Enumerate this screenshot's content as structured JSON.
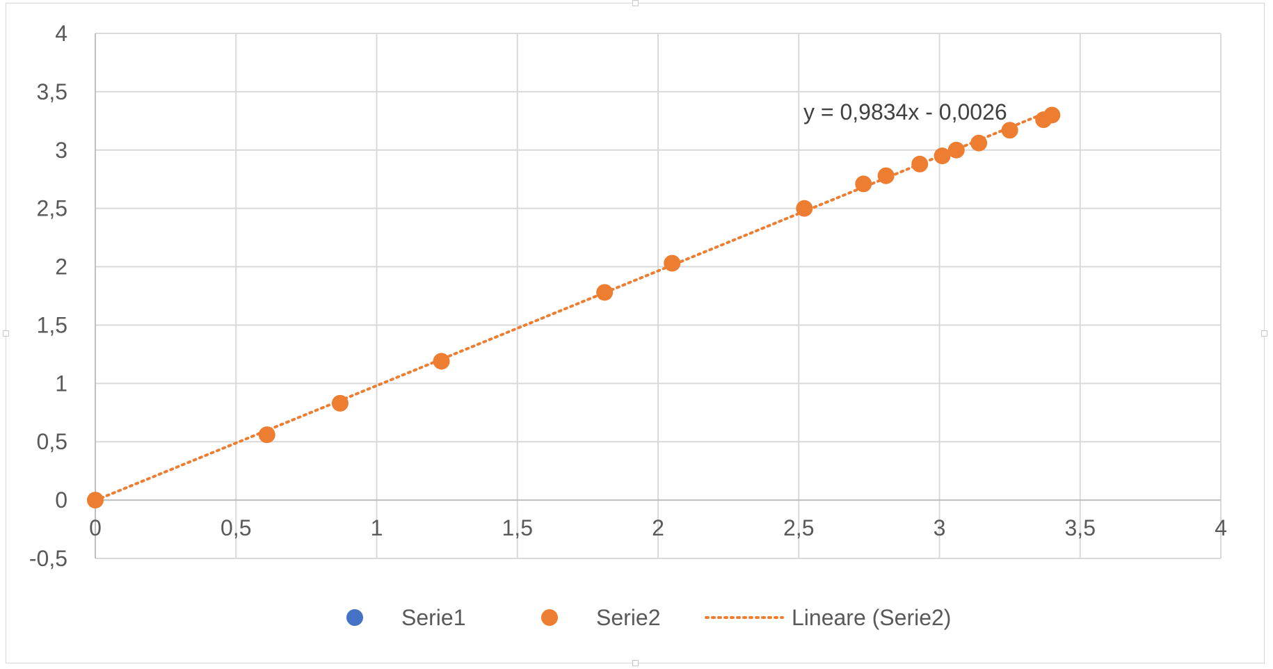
{
  "chart_data": {
    "type": "scatter",
    "title": "",
    "xlabel": "",
    "ylabel": "",
    "xlim": [
      0,
      4
    ],
    "ylim": [
      -0.5,
      4
    ],
    "grid": true,
    "x_ticks": [
      "0",
      "0,5",
      "1",
      "1,5",
      "2",
      "2,5",
      "3",
      "3,5",
      "4"
    ],
    "y_ticks": [
      "-0,5",
      "0",
      "0,5",
      "1",
      "1,5",
      "2",
      "2,5",
      "3",
      "3,5",
      "4"
    ],
    "series": [
      {
        "name": "Serie1",
        "color": "#4472C4",
        "points": []
      },
      {
        "name": "Serie2",
        "color": "#ED7D31",
        "points": [
          [
            0.0,
            0.0
          ],
          [
            0.61,
            0.56
          ],
          [
            0.87,
            0.83
          ],
          [
            1.23,
            1.19
          ],
          [
            1.81,
            1.78
          ],
          [
            2.05,
            2.03
          ],
          [
            2.52,
            2.5
          ],
          [
            2.73,
            2.71
          ],
          [
            2.81,
            2.78
          ],
          [
            2.93,
            2.88
          ],
          [
            3.01,
            2.95
          ],
          [
            3.06,
            3.0
          ],
          [
            3.14,
            3.06
          ],
          [
            3.25,
            3.17
          ],
          [
            3.37,
            3.26
          ],
          [
            3.4,
            3.3
          ]
        ]
      }
    ],
    "trendline": {
      "name": "Lineare (Serie2)",
      "series": "Serie2",
      "slope": 0.9834,
      "intercept": -0.0026,
      "x_range": [
        0,
        3.4
      ],
      "equation": "y = 0,9834x - 0,0026",
      "style": "dotted",
      "color": "#ED7D31"
    },
    "legend": {
      "position": "bottom",
      "items": [
        "Serie1",
        "Serie2",
        "Lineare (Serie2)"
      ]
    }
  }
}
